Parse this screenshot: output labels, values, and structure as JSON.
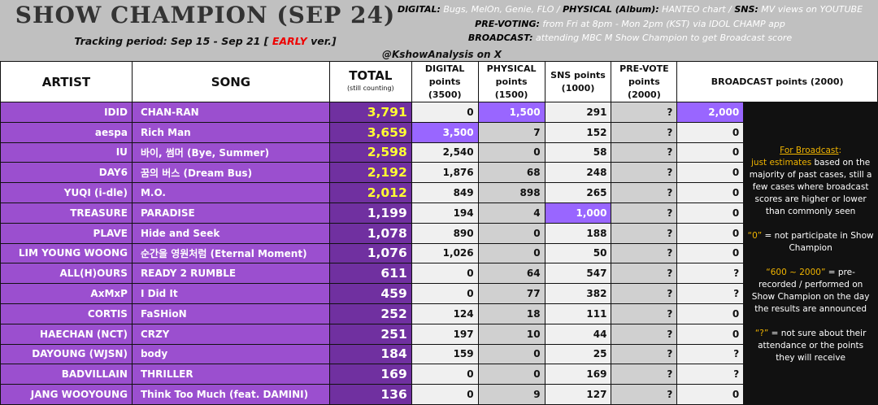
{
  "header": {
    "title": "SHOW CHAMPION (SEP 24)",
    "period_prefix": "Tracking period: Sep 15 - Sep 21 [ ",
    "period_early": "EARLY",
    "period_suffix": " ver.]",
    "digital_label": "DIGITAL:",
    "digital_text": " Bugs, MelOn, Genie, FLO / ",
    "physical_label": "PHYSICAL (Album):",
    "physical_text": " HANTEO chart / ",
    "sns_label": "SNS:",
    "sns_text": " MV views on YOUTUBE",
    "prevote_label": "PRE-VOTING:",
    "prevote_text": " from Fri at 8pm - Mon 2pm (KST) via IDOL CHAMP app",
    "broadcast_label": "BROADCAST:",
    "broadcast_text": " attending MBC M Show Champion to get Broadcast score",
    "handle": "@KshowAnalysis on X"
  },
  "columns": {
    "artist": "ARTIST",
    "song": "SONG",
    "total": "TOTAL",
    "total_sub": "(still counting)",
    "digital": "DIGITAL points (3500)",
    "physical": "PHYSICAL points (1500)",
    "sns": "SNS points (1000)",
    "prevote": "PRE-VOTE points (2000)",
    "broadcast": "BROADCAST points (2000)"
  },
  "colors": {
    "row_purple": "#9b4fcf",
    "total_purple": "#7030a0",
    "highlight": "#9966ff",
    "top_total": "#ffff33"
  },
  "rows": [
    {
      "artist": "IDID",
      "song": "CHAN-RAN",
      "total": "3,791",
      "digital": "0",
      "physical": "1,500",
      "sns": "291",
      "prevote": "?",
      "broadcast": "2,000",
      "top": true,
      "highlight": [
        "physical",
        "broadcast"
      ]
    },
    {
      "artist": "aespa",
      "song": "Rich Man",
      "total": "3,659",
      "digital": "3,500",
      "physical": "7",
      "sns": "152",
      "prevote": "?",
      "broadcast": "0",
      "top": true,
      "highlight": [
        "digital"
      ]
    },
    {
      "artist": "IU",
      "song": "바이, 썸머 (Bye, Summer)",
      "total": "2,598",
      "digital": "2,540",
      "physical": "0",
      "sns": "58",
      "prevote": "?",
      "broadcast": "0",
      "top": true,
      "highlight": []
    },
    {
      "artist": "DAY6",
      "song": "꿈의 버스 (Dream Bus)",
      "total": "2,192",
      "digital": "1,876",
      "physical": "68",
      "sns": "248",
      "prevote": "?",
      "broadcast": "0",
      "top": true,
      "highlight": []
    },
    {
      "artist": "YUQI (i-dle)",
      "song": "M.O.",
      "total": "2,012",
      "digital": "849",
      "physical": "898",
      "sns": "265",
      "prevote": "?",
      "broadcast": "0",
      "top": true,
      "highlight": []
    },
    {
      "artist": "TREASURE",
      "song": "PARADISE",
      "total": "1,199",
      "digital": "194",
      "physical": "4",
      "sns": "1,000",
      "prevote": "?",
      "broadcast": "0",
      "top": false,
      "highlight": [
        "sns"
      ]
    },
    {
      "artist": "PLAVE",
      "song": "Hide and Seek",
      "total": "1,078",
      "digital": "890",
      "physical": "0",
      "sns": "188",
      "prevote": "?",
      "broadcast": "0",
      "top": false,
      "highlight": []
    },
    {
      "artist": "LIM YOUNG WOONG",
      "song": "순간을 영원처럼 (Eternal Moment)",
      "total": "1,076",
      "digital": "1,026",
      "physical": "0",
      "sns": "50",
      "prevote": "?",
      "broadcast": "0",
      "top": false,
      "highlight": []
    },
    {
      "artist": "ALL(H)OURS",
      "song": "READY 2 RUMBLE",
      "total": "611",
      "digital": "0",
      "physical": "64",
      "sns": "547",
      "prevote": "?",
      "broadcast": "?",
      "top": false,
      "highlight": []
    },
    {
      "artist": "AxMxP",
      "song": "I Did It",
      "total": "459",
      "digital": "0",
      "physical": "77",
      "sns": "382",
      "prevote": "?",
      "broadcast": "?",
      "top": false,
      "highlight": []
    },
    {
      "artist": "CORTIS",
      "song": "FaSHioN",
      "total": "252",
      "digital": "124",
      "physical": "18",
      "sns": "111",
      "prevote": "?",
      "broadcast": "0",
      "top": false,
      "highlight": []
    },
    {
      "artist": "HAECHAN (NCT)",
      "song": "CRZY",
      "total": "251",
      "digital": "197",
      "physical": "10",
      "sns": "44",
      "prevote": "?",
      "broadcast": "0",
      "top": false,
      "highlight": []
    },
    {
      "artist": "DAYOUNG (WJSN)",
      "song": "body",
      "total": "184",
      "digital": "159",
      "physical": "0",
      "sns": "25",
      "prevote": "?",
      "broadcast": "?",
      "top": false,
      "highlight": []
    },
    {
      "artist": "BADVILLAIN",
      "song": "THRILLER",
      "total": "169",
      "digital": "0",
      "physical": "0",
      "sns": "169",
      "prevote": "?",
      "broadcast": "?",
      "top": false,
      "highlight": []
    },
    {
      "artist": "JANG WOOYOUNG",
      "song": "Think Too Much (feat. DAMINI)",
      "total": "136",
      "digital": "0",
      "physical": "9",
      "sns": "127",
      "prevote": "?",
      "broadcast": "0",
      "top": false,
      "highlight": []
    }
  ],
  "notes": {
    "heading": "For Broadcast",
    "colon": ":",
    "estimates": "just estimates",
    "estimates_rest": " based on the majority of past cases, still a few cases where broadcast scores are higher or lower than commonly seen",
    "zero_key": "“0”",
    "zero_text": " = not participate in Show Champion",
    "range_key": "“600 ~ 2000”",
    "range_text": " = pre-recorded / performed on Show Champion on the day the results are announced",
    "q_key": "“?”",
    "q_text": " = not sure about their attendance or the points they will receive"
  }
}
